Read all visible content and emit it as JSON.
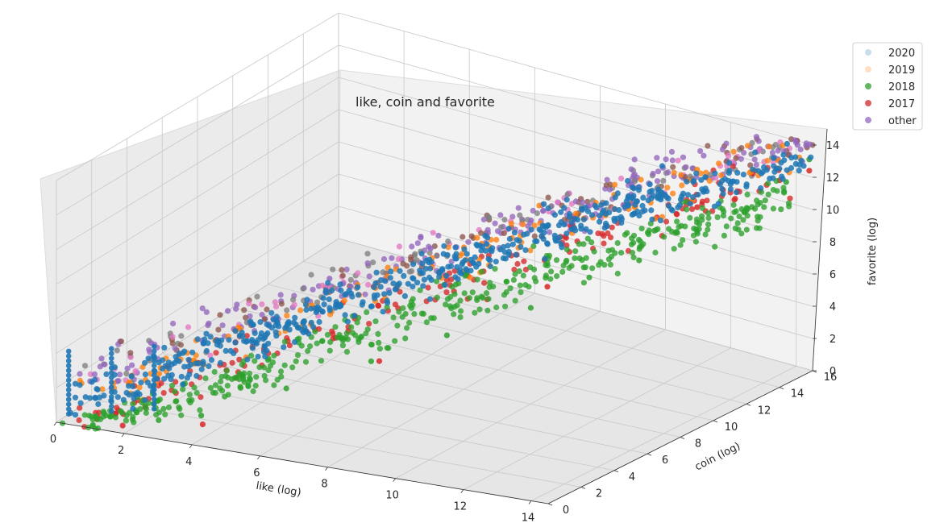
{
  "chart_data": {
    "type": "scatter",
    "projection": "3d",
    "title": "like, coin and favorite",
    "xlabel": "like (log)",
    "ylabel": "coin (log)",
    "zlabel": "favorite (log)",
    "xlim": [
      0,
      14.5
    ],
    "ylim": [
      0,
      16
    ],
    "zlim": [
      0,
      14
    ],
    "xticks": [
      0,
      2,
      4,
      6,
      8,
      10,
      12,
      14
    ],
    "yticks": [
      0,
      2,
      4,
      6,
      8,
      10,
      12,
      14,
      16
    ],
    "zticks": [
      0,
      2,
      4,
      6,
      8,
      10,
      12,
      14
    ],
    "grid": true,
    "legend": {
      "position": "top-right"
    },
    "series": [
      {
        "name": "2020",
        "color": "#1f77b4",
        "alpha": 0.25,
        "description": "dense band along the main diagonal; vertical columns of points at low like values (0–1)",
        "points": [
          [
            0.3,
            0.5,
            0.2
          ],
          [
            0.3,
            0.5,
            1.2
          ],
          [
            0.3,
            0.5,
            2.0
          ],
          [
            1.2,
            1.0,
            1.5
          ],
          [
            1.2,
            1.0,
            2.5
          ],
          [
            2.0,
            1.5,
            1.8
          ],
          [
            3,
            2.5,
            2.5
          ],
          [
            4,
            3.5,
            3.5
          ],
          [
            5,
            4.5,
            4.2
          ],
          [
            6,
            5.5,
            5.0
          ],
          [
            7,
            6.5,
            6.0
          ],
          [
            8,
            7.5,
            7.0
          ],
          [
            9,
            8.5,
            8.0
          ],
          [
            10,
            9.5,
            9.0
          ],
          [
            11,
            10.5,
            10.0
          ]
        ]
      },
      {
        "name": "2019",
        "color": "#ff7f0e",
        "alpha": 0.25,
        "points": [
          [
            2,
            2,
            2.2
          ],
          [
            5,
            5,
            5.5
          ],
          [
            8,
            8,
            8.5
          ],
          [
            11,
            11,
            11.5
          ],
          [
            12.5,
            13,
            12.8
          ]
        ]
      },
      {
        "name": "2018",
        "color": "#2ca02c",
        "alpha": 0.75,
        "points": [
          [
            2.5,
            1.0,
            0.3
          ],
          [
            3.5,
            1.5,
            0.6
          ],
          [
            5,
            3.5,
            1.5
          ],
          [
            6.5,
            5.5,
            2.5
          ],
          [
            8,
            7.0,
            3.8
          ],
          [
            9.5,
            9.0,
            5.0
          ],
          [
            10.5,
            10.5,
            6.5
          ],
          [
            11.5,
            11.5,
            7.5
          ],
          [
            12.5,
            13.0,
            9.0
          ],
          [
            13.5,
            14.0,
            10.5
          ],
          [
            14.2,
            15.0,
            12.0
          ],
          [
            14.5,
            15.8,
            13.2
          ]
        ]
      },
      {
        "name": "2017",
        "color": "#d62728",
        "alpha": 0.75,
        "points": [
          [
            1.8,
            0.3,
            0.2
          ],
          [
            3.8,
            1.0,
            0.5
          ],
          [
            7,
            5,
            3
          ],
          [
            10,
            9,
            6.5
          ],
          [
            12.5,
            13.0,
            10.5
          ],
          [
            14.0,
            15.0,
            12.0
          ],
          [
            14.5,
            15.8,
            12.5
          ]
        ]
      },
      {
        "name": "other",
        "color": "#9467bd",
        "alpha": 0.75,
        "points": [
          [
            1.5,
            2.5,
            3.5
          ],
          [
            3,
            4,
            5
          ],
          [
            5,
            6,
            6.5
          ],
          [
            7,
            8,
            8
          ],
          [
            9,
            10,
            9.5
          ],
          [
            11,
            12,
            11
          ]
        ]
      }
    ]
  }
}
